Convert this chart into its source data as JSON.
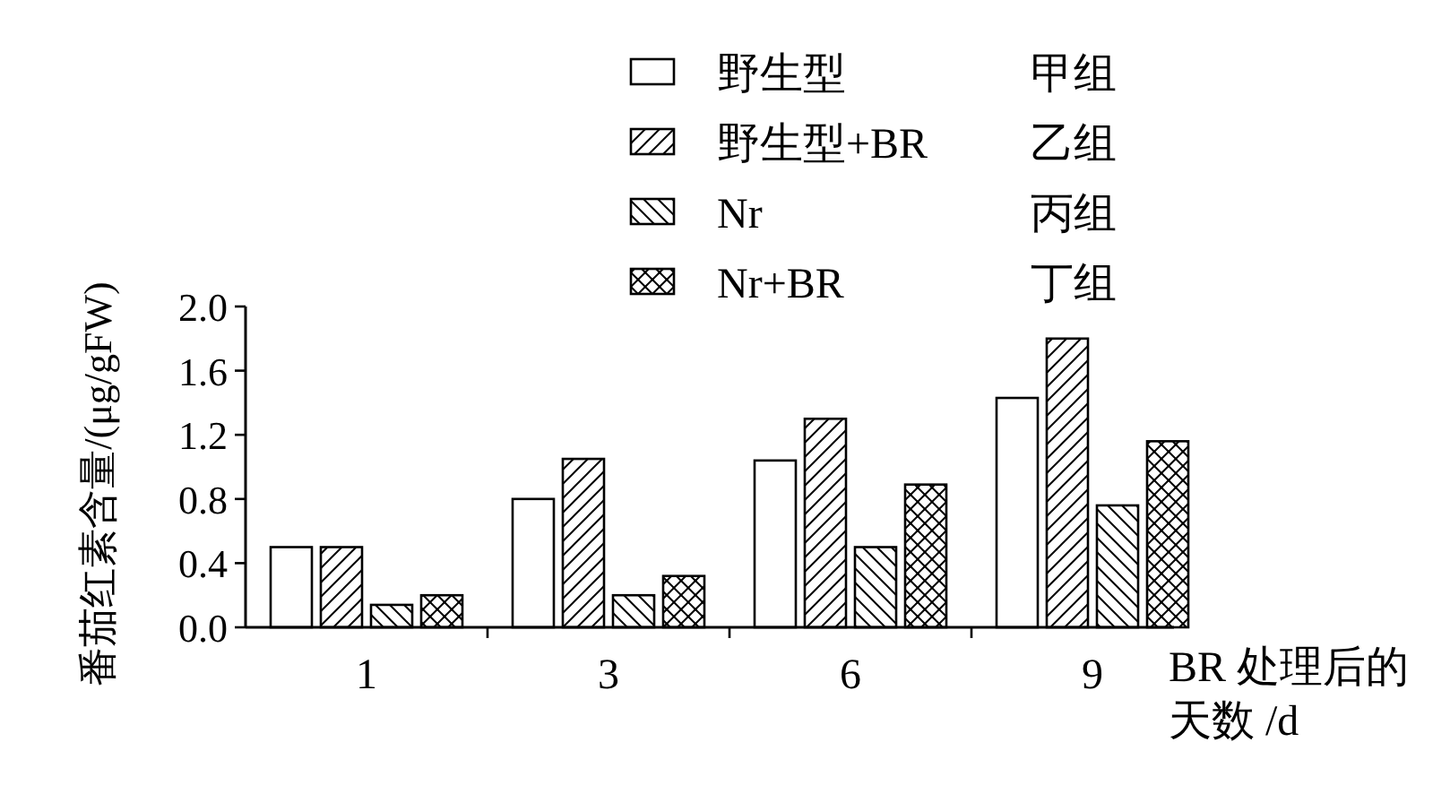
{
  "chart_data": {
    "type": "bar",
    "categories": [
      "1",
      "3",
      "6",
      "9"
    ],
    "series": [
      {
        "name": "野生型",
        "color": "#ffffff",
        "values": [
          0.5,
          0.8,
          1.04,
          1.43
        ]
      },
      {
        "name": "野生型+BR",
        "color": "#ffffff",
        "values": [
          0.5,
          1.05,
          1.3,
          1.8
        ]
      },
      {
        "name": "Nr",
        "color": "#ffffff",
        "values": [
          0.14,
          0.2,
          0.5,
          0.76
        ]
      },
      {
        "name": "Nr+BR",
        "color": "#ffffff",
        "values": [
          0.2,
          0.32,
          0.89,
          1.16
        ]
      }
    ],
    "annotations": [
      "甲组",
      "乙组",
      "丙组",
      "丁组"
    ],
    "xlabel": "BR 处理后的天数 /d",
    "ylabel": "番茄红素含量/(μg/gFW)",
    "ylim": [
      0,
      2.0
    ],
    "yticks": [
      {
        "value": 0,
        "label": "0.0"
      },
      {
        "value": 0.4,
        "label": "0.4"
      },
      {
        "value": 0.8,
        "label": "0.8"
      },
      {
        "value": 1.2,
        "label": "1.2"
      },
      {
        "value": 1.6,
        "label": "1.6"
      },
      {
        "value": 2.0,
        "label": "2.0"
      }
    ],
    "legend": "top right"
  }
}
